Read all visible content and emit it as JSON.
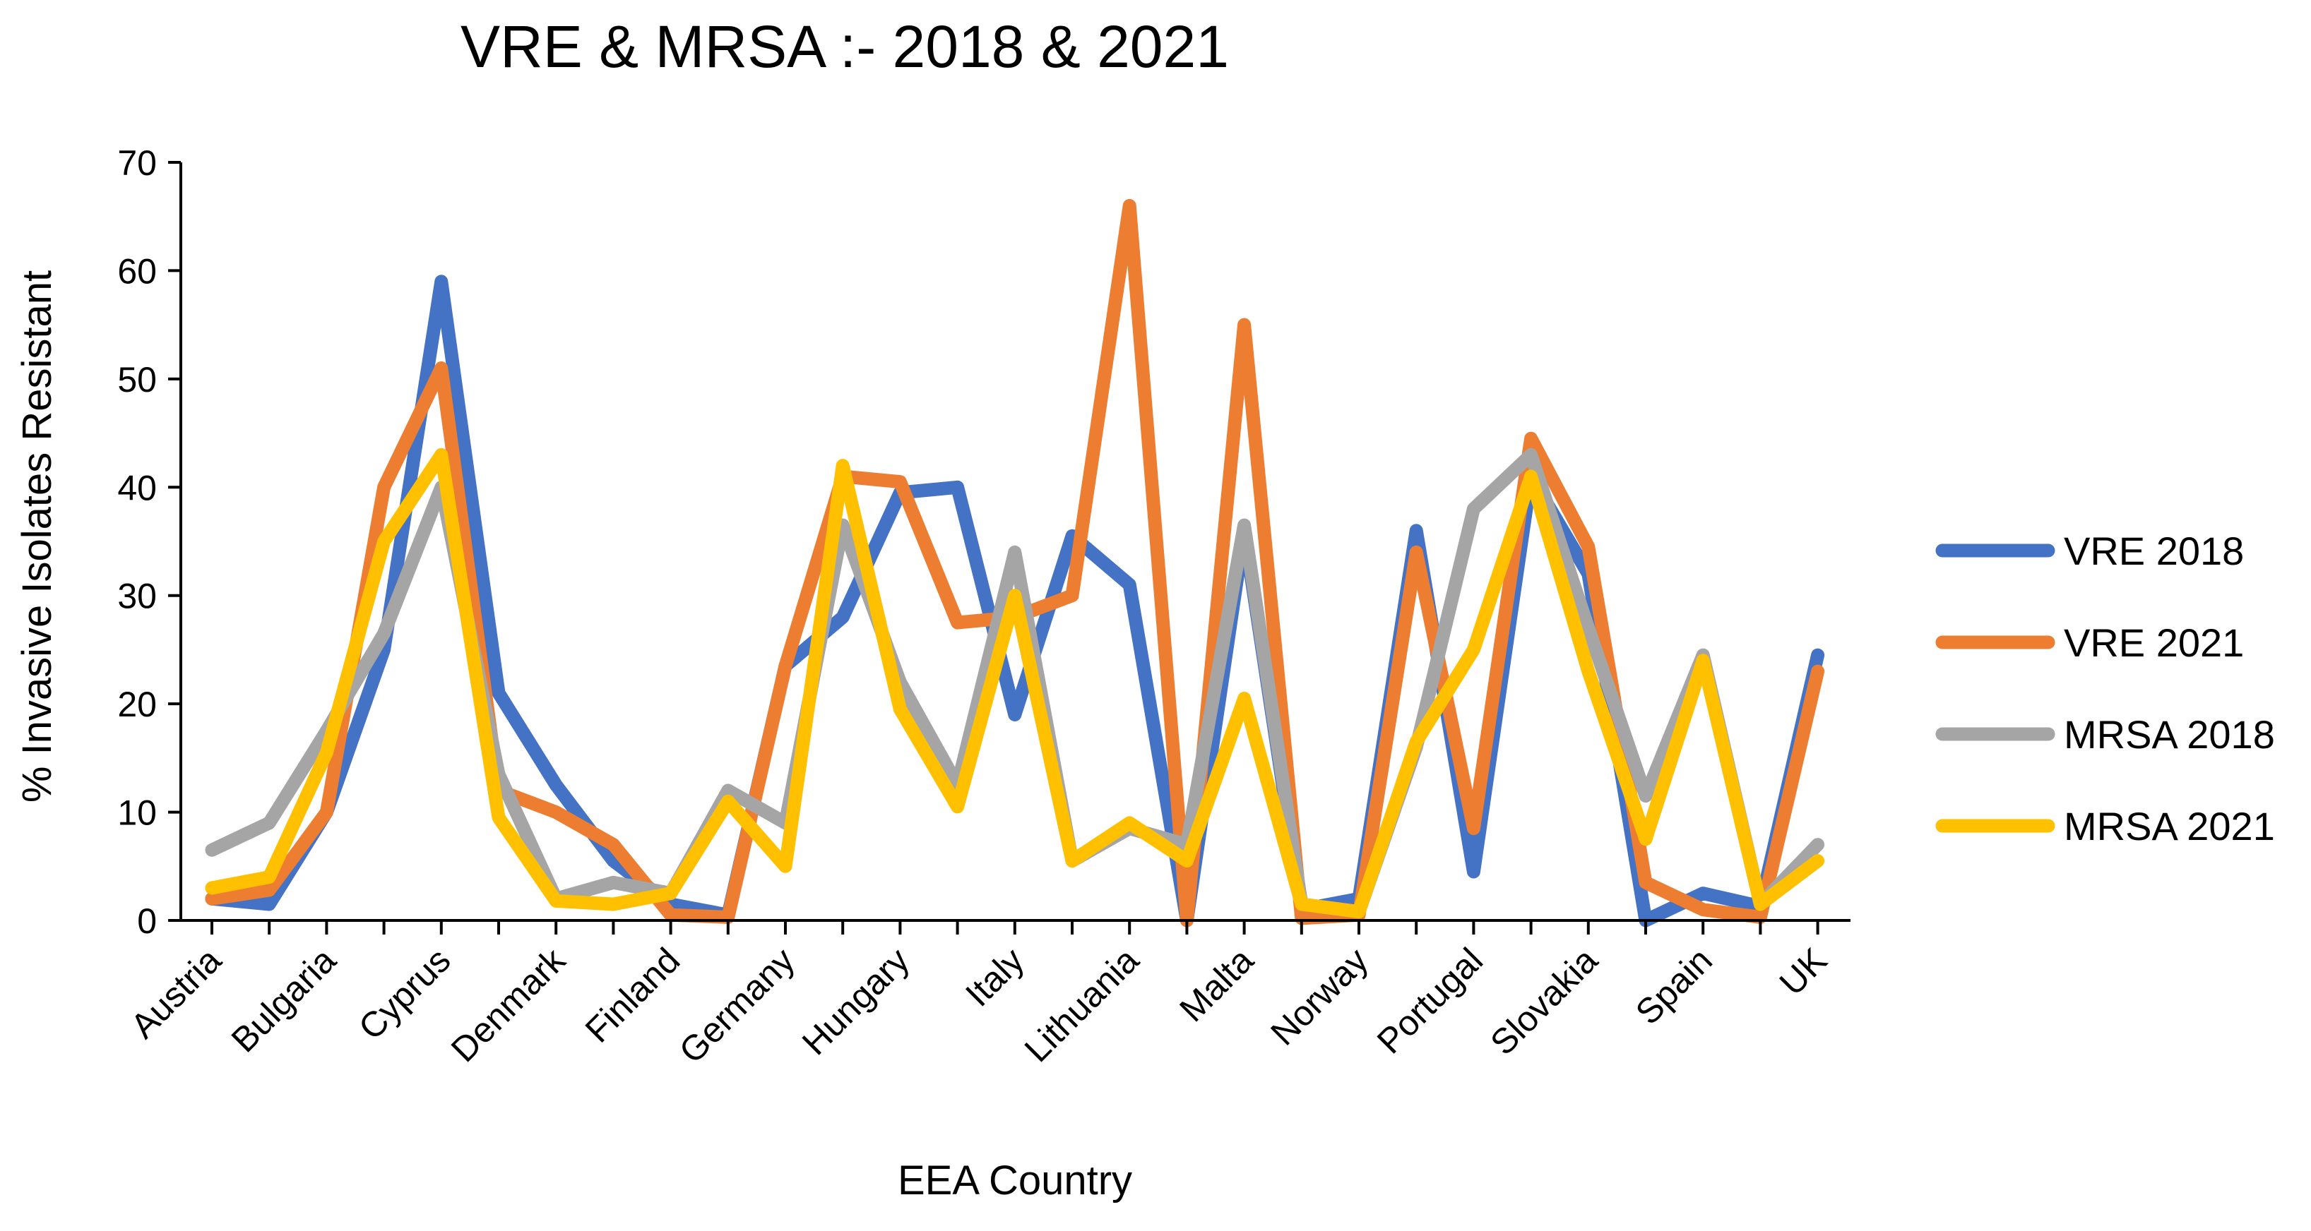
{
  "chart_data": {
    "type": "line",
    "title": "VRE & MRSA :- 2018 & 2021",
    "xlabel": "EEA Country",
    "ylabel": "% Invasive Isolates Resistant",
    "ylim": [
      0,
      70
    ],
    "yticks": [
      0,
      10,
      20,
      30,
      40,
      50,
      60,
      70
    ],
    "grid": false,
    "legend_position": "right",
    "x_tick_labels": [
      "Austria",
      "Bulgaria",
      "Cyprus",
      "Denmark",
      "Finland",
      "Germany",
      "Hungary",
      "Italy",
      "Lithuania",
      "Malta",
      "Norway",
      "Portugal",
      "Slovakia",
      "Spain",
      "UK"
    ],
    "series": [
      {
        "name": "VRE 2018",
        "color": "#4472C4",
        "values": [
          2,
          1.5,
          10,
          25,
          59,
          21,
          12.5,
          5.5,
          1.5,
          0.5,
          23.5,
          28,
          39.5,
          40,
          19,
          35.5,
          31,
          0,
          36,
          1,
          2,
          36,
          4.5,
          41,
          32,
          0,
          2.5,
          1.3,
          24.5
        ]
      },
      {
        "name": "VRE 2021",
        "color": "#ED7D31",
        "values": [
          2,
          2.8,
          10,
          40,
          51,
          12,
          10,
          7,
          0.5,
          0.3,
          23.5,
          41,
          40.5,
          27.5,
          28,
          30,
          66,
          0,
          55,
          0.2,
          0.5,
          34,
          8.5,
          44.5,
          34.5,
          3.5,
          1,
          0.3,
          23
        ]
      },
      {
        "name": "MRSA 2018",
        "color": "#A5A5A5",
        "values": [
          6.5,
          9,
          17.5,
          26.5,
          40,
          13.5,
          2,
          3.5,
          2.5,
          12,
          9,
          36.5,
          22,
          12.5,
          34,
          5.5,
          8.5,
          7,
          36.5,
          1.5,
          0.8,
          16,
          38,
          43,
          27,
          11.5,
          24.5,
          1.5,
          7
        ]
      },
      {
        "name": "MRSA 2021",
        "color": "#FFC000",
        "values": [
          3,
          4,
          15.5,
          35,
          43,
          9.5,
          1.8,
          1.5,
          2.5,
          11,
          5,
          42,
          19.5,
          10.5,
          30,
          5.5,
          9,
          5.5,
          20.5,
          1.5,
          0.8,
          16.5,
          25,
          41,
          23,
          7.5,
          24,
          1.5,
          5.5
        ]
      }
    ]
  }
}
